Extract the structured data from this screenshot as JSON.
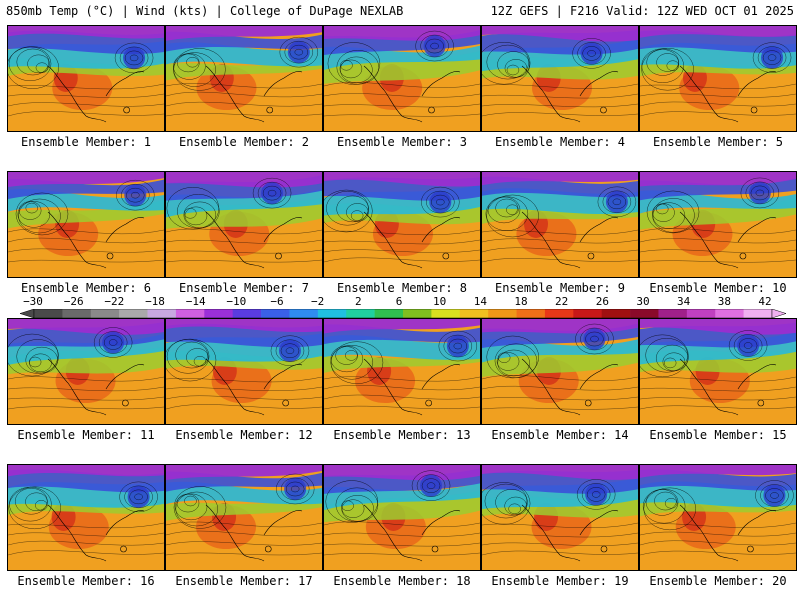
{
  "header": {
    "left": "850mb Temp (°C) | Wind (kts) | College of DuPage NEXLAB",
    "right": "12Z GEFS | F216 Valid: 12Z WED OCT 01 2025"
  },
  "colorbar": {
    "labels": [
      "−30",
      "−26",
      "−22",
      "−18",
      "−14",
      "−10",
      "−6",
      "−2",
      "2",
      "6",
      "10",
      "14",
      "18",
      "22",
      "26",
      "30",
      "34",
      "38",
      "42"
    ],
    "colors": [
      "#4a4a4a",
      "#6a6a6a",
      "#8a8a8a",
      "#aaaaaa",
      "#c8a8e0",
      "#d060e0",
      "#9b30d8",
      "#5a3ce0",
      "#3a60e8",
      "#2f8cf0",
      "#20c0e0",
      "#20d0a0",
      "#30c050",
      "#80c020",
      "#d8e020",
      "#f0c020",
      "#f09818",
      "#f07018",
      "#e83818",
      "#c81818",
      "#a01010",
      "#8a0a2a",
      "#a0208a",
      "#c040c0",
      "#e070e0",
      "#f0b0f0"
    ]
  },
  "members": [
    {
      "label": "Ensemble Member: 1"
    },
    {
      "label": "Ensemble Member: 2"
    },
    {
      "label": "Ensemble Member: 3"
    },
    {
      "label": "Ensemble Member: 4"
    },
    {
      "label": "Ensemble Member: 5"
    },
    {
      "label": "Ensemble Member: 6"
    },
    {
      "label": "Ensemble Member: 7"
    },
    {
      "label": "Ensemble Member: 8"
    },
    {
      "label": "Ensemble Member: 9"
    },
    {
      "label": "Ensemble Member: 10"
    },
    {
      "label": "Ensemble Member: 11"
    },
    {
      "label": "Ensemble Member: 12"
    },
    {
      "label": "Ensemble Member: 13"
    },
    {
      "label": "Ensemble Member: 14"
    },
    {
      "label": "Ensemble Member: 15"
    },
    {
      "label": "Ensemble Member: 16"
    },
    {
      "label": "Ensemble Member: 17"
    },
    {
      "label": "Ensemble Member: 18"
    },
    {
      "label": "Ensemble Member: 19"
    },
    {
      "label": "Ensemble Member: 20"
    }
  ]
}
